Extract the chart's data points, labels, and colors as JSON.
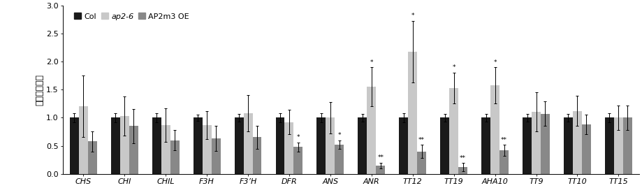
{
  "categories": [
    "CHS",
    "CHI",
    "CHIL",
    "F3H",
    "F3’H",
    "DFR",
    "ANS",
    "ANR",
    "TT12",
    "TT19",
    "AHA10",
    "TT9",
    "TT10",
    "TT15"
  ],
  "col_values": [
    1.0,
    1.0,
    1.0,
    1.0,
    1.0,
    1.0,
    1.0,
    1.0,
    1.0,
    1.0,
    1.0,
    1.0,
    1.0,
    1.0
  ],
  "ap26_values": [
    1.2,
    1.03,
    0.87,
    0.87,
    1.08,
    0.92,
    1.0,
    1.55,
    2.18,
    1.53,
    1.58,
    1.1,
    1.12,
    1.0
  ],
  "oe_values": [
    0.58,
    0.85,
    0.6,
    0.63,
    0.65,
    0.48,
    0.52,
    0.15,
    0.4,
    0.12,
    0.42,
    1.07,
    0.88,
    1.0
  ],
  "col_err": [
    0.08,
    0.08,
    0.08,
    0.06,
    0.07,
    0.08,
    0.08,
    0.07,
    0.08,
    0.07,
    0.07,
    0.07,
    0.07,
    0.08
  ],
  "ap26_err": [
    0.55,
    0.35,
    0.3,
    0.25,
    0.32,
    0.22,
    0.28,
    0.35,
    0.55,
    0.28,
    0.32,
    0.35,
    0.27,
    0.22
  ],
  "oe_err": [
    0.18,
    0.3,
    0.18,
    0.22,
    0.2,
    0.08,
    0.08,
    0.05,
    0.12,
    0.07,
    0.1,
    0.22,
    0.18,
    0.22
  ],
  "col_color": "#1a1a1a",
  "ap26_color": "#c8c8c8",
  "oe_color": "#888888",
  "ylabel": "基因表达水平",
  "ylim": [
    0,
    3.0
  ],
  "yticks": [
    0,
    0.5,
    1.0,
    1.5,
    2.0,
    2.5,
    3.0
  ],
  "legend_labels": [
    "Col",
    "ap2-6",
    "AP2m3 OE"
  ],
  "significance_ap26": [
    null,
    null,
    null,
    null,
    null,
    null,
    null,
    "*",
    "*",
    "*",
    "*",
    null,
    null,
    null
  ],
  "significance_oe": [
    null,
    null,
    null,
    null,
    null,
    "*",
    "*",
    "**",
    "**",
    "**",
    "**",
    null,
    null,
    null
  ],
  "bar_width": 0.22,
  "figsize": [
    9.19,
    2.69
  ],
  "dpi": 100
}
